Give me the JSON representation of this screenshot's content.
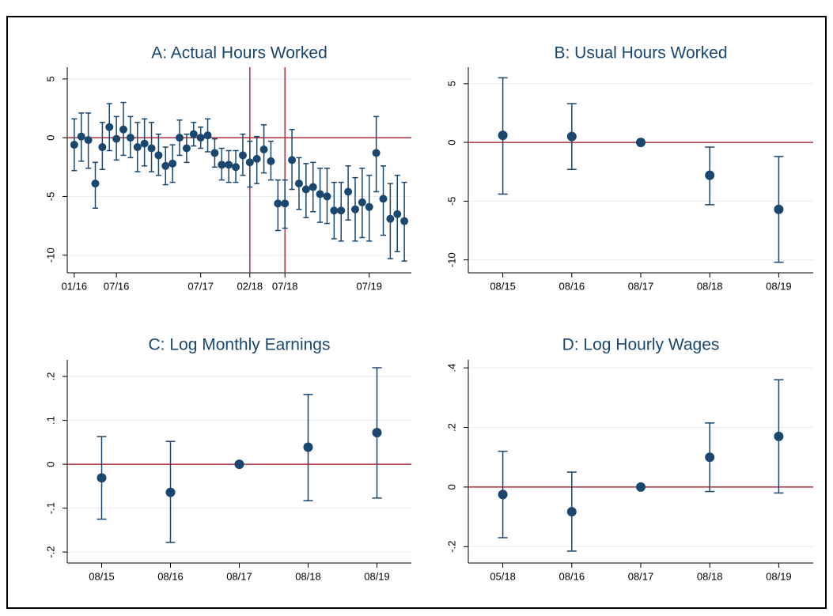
{
  "chart_data": [
    {
      "type": "errorbar",
      "title": "A: Actual Hours Worked",
      "x": [
        "01/16",
        "02/16",
        "03/16",
        "04/16",
        "05/16",
        "06/16",
        "07/16",
        "08/16",
        "09/16",
        "10/16",
        "11/16",
        "12/16",
        "01/17",
        "02/17",
        "03/17",
        "04/17",
        "05/17",
        "06/17",
        "07/17",
        "08/17",
        "09/17",
        "10/17",
        "11/17",
        "12/17",
        "01/18",
        "02/18",
        "03/18",
        "04/18",
        "05/18",
        "06/18",
        "07/18",
        "08/18",
        "09/18",
        "10/18",
        "11/18",
        "12/18",
        "01/19",
        "02/19",
        "03/19",
        "04/19",
        "05/19",
        "06/19",
        "07/19",
        "08/19",
        "09/19",
        "10/19",
        "11/19",
        "12/19"
      ],
      "values": [
        -0.6,
        0.1,
        -0.2,
        -3.9,
        -0.8,
        0.9,
        -0.1,
        0.7,
        0.0,
        -0.8,
        -0.5,
        -0.9,
        -1.5,
        -2.4,
        -2.2,
        0.0,
        -0.9,
        0.3,
        0.0,
        0.2,
        -1.3,
        -2.3,
        -2.3,
        -2.5,
        -1.5,
        -2.1,
        -1.8,
        -1.0,
        -2.0,
        -5.6,
        -5.6,
        -1.9,
        -3.9,
        -4.4,
        -4.2,
        -4.8,
        -5.0,
        -6.2,
        -6.2,
        -4.6,
        -6.1,
        -5.5,
        -5.9,
        -1.3,
        -5.2,
        -6.9,
        -6.5,
        -7.1
      ],
      "upper": [
        1.6,
        2.1,
        2.1,
        -2.1,
        1.3,
        2.9,
        1.8,
        3.0,
        1.8,
        1.3,
        1.6,
        1.3,
        0.3,
        -0.8,
        -0.6,
        1.5,
        0.3,
        1.3,
        0.9,
        1.6,
        -0.1,
        -0.9,
        -1.1,
        -1.1,
        0.3,
        -0.3,
        0.1,
        1.1,
        -0.3,
        -3.6,
        -3.6,
        0.7,
        -1.7,
        -2.2,
        -2.1,
        -2.6,
        -2.6,
        -3.8,
        -3.8,
        -2.4,
        -3.4,
        -2.6,
        -3.2,
        1.8,
        -2.4,
        -3.9,
        -3.2,
        -3.8
      ],
      "lower": [
        -2.8,
        -2.0,
        -2.6,
        -6.0,
        -2.7,
        -1.1,
        -1.9,
        -1.5,
        -1.7,
        -2.9,
        -2.4,
        -2.9,
        -3.2,
        -4.0,
        -3.8,
        -1.5,
        -2.1,
        -0.7,
        -0.9,
        -1.2,
        -2.5,
        -3.6,
        -3.8,
        -3.8,
        -3.2,
        -4.2,
        -3.9,
        -3.0,
        -3.6,
        -7.9,
        -7.7,
        -4.4,
        -6.1,
        -6.8,
        -6.3,
        -7.2,
        -7.3,
        -8.6,
        -8.8,
        -7.0,
        -8.8,
        -8.5,
        -8.8,
        -4.6,
        -8.3,
        -10.3,
        -9.7,
        -10.5
      ],
      "xlim": [
        "12/15",
        "01/20"
      ],
      "xticks": [
        "01/16",
        "07/16",
        "07/17",
        "02/18",
        "07/18",
        "07/19"
      ],
      "ylim": [
        -11.5,
        6
      ],
      "yticks": [
        5,
        0,
        -5,
        -10
      ],
      "hline": 0,
      "vlines": [
        "02/18",
        "07/18"
      ],
      "color": "#1a476f",
      "line_color": "#b0303f",
      "grid": true
    },
    {
      "type": "errorbar",
      "title": "B: Usual Hours Worked",
      "categories": [
        "08/15",
        "08/16",
        "08/17",
        "08/18",
        "08/19"
      ],
      "values": [
        0.6,
        0.5,
        0,
        -2.8,
        -5.7
      ],
      "upper": [
        5.5,
        3.3,
        0,
        -0.4,
        -1.2
      ],
      "lower": [
        -4.4,
        -2.3,
        0,
        -5.3,
        -10.2
      ],
      "ylim": [
        -11.1,
        6.4
      ],
      "yticks": [
        5,
        0,
        -5,
        -10
      ],
      "hline": 0,
      "color": "#1a476f",
      "line_color": "#b0303f",
      "grid": true
    },
    {
      "type": "errorbar",
      "title": "C: Log Monthly Earnings",
      "categories": [
        "08/15",
        "08/16",
        "08/17",
        "08/18",
        "08/19"
      ],
      "values": [
        -0.031,
        -0.064,
        0,
        0.039,
        0.072
      ],
      "upper": [
        0.063,
        0.052,
        0,
        0.159,
        0.22
      ],
      "lower": [
        -0.125,
        -0.178,
        0,
        -0.083,
        -0.077
      ],
      "ylim": [
        -0.225,
        0.238
      ],
      "yticks": [
        {
          "value": 0.2,
          "label": ".2"
        },
        {
          "value": 0.1,
          "label": ".1"
        },
        0,
        {
          "value": -0.1,
          "label": "-.1"
        },
        {
          "value": -0.2,
          "label": "-.2"
        }
      ],
      "hline": 0,
      "color": "#1a476f",
      "line_color": "#b0303f",
      "grid": true
    },
    {
      "type": "errorbar",
      "title": "D: Log Hourly Wages",
      "categories": [
        "05/18",
        "08/16",
        "08/17",
        "08/18",
        "08/19"
      ],
      "values": [
        -0.025,
        -0.083,
        0,
        0.1,
        0.17
      ],
      "upper": [
        0.12,
        0.05,
        0,
        0.215,
        0.36
      ],
      "lower": [
        -0.17,
        -0.215,
        0,
        -0.015,
        -0.02
      ],
      "ylim": [
        -0.255,
        0.427
      ],
      "yticks": [
        {
          "value": 0.4,
          "label": ".4"
        },
        {
          "value": 0.2,
          "label": ".2"
        },
        0,
        {
          "value": -0.2,
          "label": "-.2"
        }
      ],
      "hline": 0,
      "color": "#1a476f",
      "line_color": "#b0303f",
      "grid": true
    }
  ]
}
